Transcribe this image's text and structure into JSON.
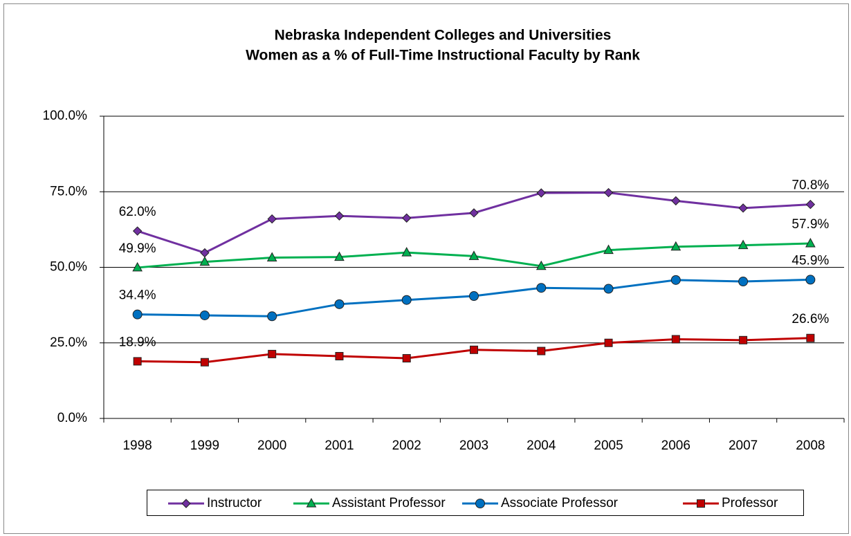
{
  "chart_data": {
    "type": "line",
    "title": [
      "Nebraska Independent Colleges and Universities",
      "Women as a % of Full-Time Instructional Faculty by Rank"
    ],
    "categories": [
      "1998",
      "1999",
      "2000",
      "2001",
      "2002",
      "2003",
      "2004",
      "2005",
      "2006",
      "2007",
      "2008"
    ],
    "series": [
      {
        "name": "Instructor",
        "color": "#7030a0",
        "marker": "diamond",
        "values": [
          62.0,
          54.8,
          66.0,
          67.0,
          66.3,
          68.0,
          74.6,
          74.7,
          72.0,
          69.6,
          70.8
        ],
        "value_labels": [
          "62.0%",
          null,
          null,
          null,
          null,
          null,
          null,
          null,
          null,
          null,
          "70.8%"
        ]
      },
      {
        "name": "Assistant Professor",
        "color": "#00b050",
        "marker": "triangle",
        "values": [
          49.9,
          51.8,
          53.2,
          53.4,
          54.9,
          53.7,
          50.4,
          55.7,
          56.8,
          57.3,
          57.9
        ],
        "value_labels": [
          "49.9%",
          null,
          null,
          null,
          null,
          null,
          null,
          null,
          null,
          null,
          "57.9%"
        ]
      },
      {
        "name": "Associate Professor",
        "color": "#0070c0",
        "marker": "circle",
        "values": [
          34.4,
          34.1,
          33.8,
          37.8,
          39.2,
          40.5,
          43.2,
          42.9,
          45.8,
          45.3,
          45.9
        ],
        "value_labels": [
          "34.4%",
          null,
          null,
          null,
          null,
          null,
          null,
          null,
          null,
          null,
          "45.9%"
        ]
      },
      {
        "name": "Professor",
        "color": "#c00000",
        "marker": "square",
        "values": [
          18.9,
          18.6,
          21.3,
          20.6,
          19.9,
          22.7,
          22.3,
          25.0,
          26.2,
          25.9,
          26.6
        ],
        "value_labels": [
          "18.9%",
          null,
          null,
          null,
          null,
          null,
          null,
          null,
          null,
          null,
          "26.6%"
        ]
      }
    ],
    "ylim": [
      0,
      100
    ],
    "yticks": [
      {
        "value": 0,
        "label": "0.0%"
      },
      {
        "value": 25,
        "label": "25.0%"
      },
      {
        "value": 50,
        "label": "50.0%"
      },
      {
        "value": 75,
        "label": "75.0%"
      },
      {
        "value": 100,
        "label": "100.0%"
      }
    ],
    "grid": true,
    "legend": "bottom"
  }
}
